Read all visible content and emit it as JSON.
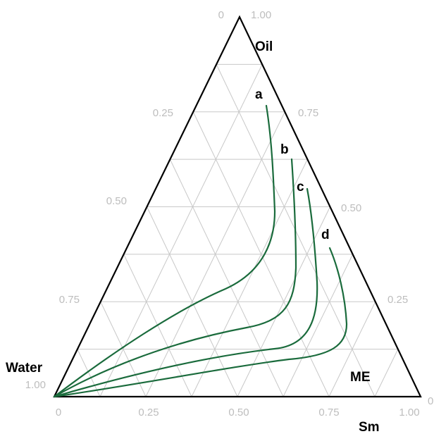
{
  "corners": {
    "top": "Oil",
    "bottom_left": "Water",
    "bottom_right": "Sm",
    "region": "ME"
  },
  "ticks": {
    "bottom": [
      "0",
      "0.25",
      "0.50",
      "0.75",
      "1.00"
    ],
    "left": [
      "0.25",
      "0.50",
      "0.75",
      "1.00"
    ],
    "left_apex": "0",
    "right": [
      "0.75",
      "0.50",
      "0.25",
      "0"
    ],
    "right_apex": "1.00"
  },
  "curves": [
    {
      "label": "a"
    },
    {
      "label": "b"
    },
    {
      "label": "c"
    },
    {
      "label": "d"
    }
  ],
  "colors": {
    "curve": "#1a6b3c",
    "grid": "#c8c8c8",
    "tick_text": "#bdbdbd",
    "frame": "#000000"
  }
}
